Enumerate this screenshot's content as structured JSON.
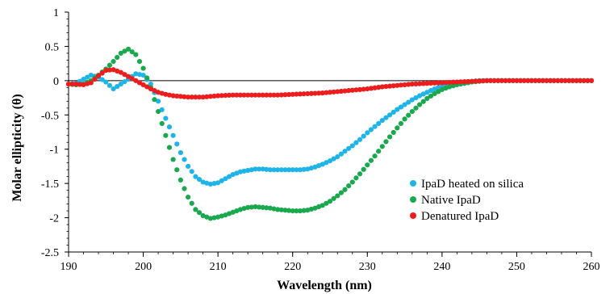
{
  "chart_data": {
    "type": "scatter",
    "title": "",
    "xlabel": "Wavelength (nm)",
    "ylabel": "Molar ellipticity  (θ)",
    "xlim": [
      190,
      260
    ],
    "ylim": [
      -2.5,
      1
    ],
    "xticks": [
      190,
      200,
      210,
      220,
      230,
      240,
      250,
      260
    ],
    "yticks": [
      1,
      0.5,
      0,
      -0.5,
      -1,
      -1.5,
      -2,
      -2.5
    ],
    "xtick_labels": [
      "190",
      "200",
      "210",
      "220",
      "230",
      "240",
      "250",
      "260"
    ],
    "ytick_labels": [
      "1",
      "0.5",
      "0",
      "-0.5",
      "-1",
      "-1.5",
      "-2",
      "-2.5"
    ],
    "grid": false,
    "legend_position": "right",
    "x_step": 0.5,
    "series": [
      {
        "name": "IpaD heated on silica",
        "color": "#1fb4e8",
        "anchors": [
          [
            190,
            -0.05
          ],
          [
            191,
            -0.04
          ],
          [
            192,
            0.02
          ],
          [
            193,
            0.08
          ],
          [
            194,
            0.05
          ],
          [
            195,
            -0.02
          ],
          [
            196,
            -0.12
          ],
          [
            197,
            -0.05
          ],
          [
            198,
            0.02
          ],
          [
            199,
            0.1
          ],
          [
            200,
            0.08
          ],
          [
            201,
            -0.05
          ],
          [
            202,
            -0.3
          ],
          [
            203,
            -0.55
          ],
          [
            204,
            -0.8
          ],
          [
            205,
            -1.05
          ],
          [
            206,
            -1.25
          ],
          [
            207,
            -1.4
          ],
          [
            208,
            -1.48
          ],
          [
            209,
            -1.51
          ],
          [
            210,
            -1.49
          ],
          [
            211,
            -1.43
          ],
          [
            212,
            -1.37
          ],
          [
            213,
            -1.33
          ],
          [
            214,
            -1.31
          ],
          [
            215,
            -1.29
          ],
          [
            216,
            -1.29
          ],
          [
            217,
            -1.3
          ],
          [
            218,
            -1.3
          ],
          [
            219,
            -1.3
          ],
          [
            220,
            -1.3
          ],
          [
            221,
            -1.3
          ],
          [
            222,
            -1.29
          ],
          [
            223,
            -1.26
          ],
          [
            224,
            -1.22
          ],
          [
            225,
            -1.17
          ],
          [
            226,
            -1.11
          ],
          [
            227,
            -1.03
          ],
          [
            228,
            -0.95
          ],
          [
            229,
            -0.86
          ],
          [
            230,
            -0.76
          ],
          [
            231,
            -0.67
          ],
          [
            232,
            -0.58
          ],
          [
            233,
            -0.5
          ],
          [
            234,
            -0.42
          ],
          [
            235,
            -0.35
          ],
          [
            236,
            -0.28
          ],
          [
            237,
            -0.22
          ],
          [
            238,
            -0.17
          ],
          [
            239,
            -0.12
          ],
          [
            240,
            -0.08
          ],
          [
            241,
            -0.05
          ],
          [
            242,
            -0.03
          ],
          [
            243,
            -0.02
          ],
          [
            244,
            -0.01
          ],
          [
            245,
            0
          ],
          [
            250,
            0
          ],
          [
            255,
            0
          ],
          [
            260,
            0
          ]
        ]
      },
      {
        "name": "Native IpaD",
        "color": "#1aa84e",
        "anchors": [
          [
            190,
            -0.05
          ],
          [
            191,
            -0.06
          ],
          [
            192,
            -0.05
          ],
          [
            193,
            0.0
          ],
          [
            194,
            0.08
          ],
          [
            195,
            0.17
          ],
          [
            196,
            0.28
          ],
          [
            197,
            0.4
          ],
          [
            198,
            0.46
          ],
          [
            199,
            0.38
          ],
          [
            200,
            0.18
          ],
          [
            201,
            -0.1
          ],
          [
            202,
            -0.45
          ],
          [
            203,
            -0.8
          ],
          [
            204,
            -1.15
          ],
          [
            205,
            -1.45
          ],
          [
            206,
            -1.7
          ],
          [
            207,
            -1.88
          ],
          [
            208,
            -1.97
          ],
          [
            209,
            -2.01
          ],
          [
            210,
            -1.99
          ],
          [
            211,
            -1.96
          ],
          [
            212,
            -1.92
          ],
          [
            213,
            -1.88
          ],
          [
            214,
            -1.85
          ],
          [
            215,
            -1.84
          ],
          [
            216,
            -1.85
          ],
          [
            217,
            -1.86
          ],
          [
            218,
            -1.88
          ],
          [
            219,
            -1.89
          ],
          [
            220,
            -1.9
          ],
          [
            221,
            -1.9
          ],
          [
            222,
            -1.89
          ],
          [
            223,
            -1.86
          ],
          [
            224,
            -1.82
          ],
          [
            225,
            -1.76
          ],
          [
            226,
            -1.68
          ],
          [
            227,
            -1.59
          ],
          [
            228,
            -1.48
          ],
          [
            229,
            -1.36
          ],
          [
            230,
            -1.23
          ],
          [
            231,
            -1.1
          ],
          [
            232,
            -0.96
          ],
          [
            233,
            -0.82
          ],
          [
            234,
            -0.69
          ],
          [
            235,
            -0.56
          ],
          [
            236,
            -0.45
          ],
          [
            237,
            -0.35
          ],
          [
            238,
            -0.26
          ],
          [
            239,
            -0.19
          ],
          [
            240,
            -0.13
          ],
          [
            241,
            -0.09
          ],
          [
            242,
            -0.06
          ],
          [
            243,
            -0.04
          ],
          [
            244,
            -0.02
          ],
          [
            245,
            -0.01
          ],
          [
            246,
            0
          ],
          [
            250,
            0
          ],
          [
            255,
            0
          ],
          [
            260,
            0
          ]
        ]
      },
      {
        "name": "Denatured IpaD",
        "color": "#ee1c1c",
        "anchors": [
          [
            190,
            -0.05
          ],
          [
            191,
            -0.05
          ],
          [
            192,
            -0.06
          ],
          [
            193,
            -0.03
          ],
          [
            194,
            0.07
          ],
          [
            195,
            0.15
          ],
          [
            196,
            0.16
          ],
          [
            197,
            0.12
          ],
          [
            198,
            0.06
          ],
          [
            199,
            0.0
          ],
          [
            200,
            -0.06
          ],
          [
            201,
            -0.12
          ],
          [
            202,
            -0.17
          ],
          [
            203,
            -0.2
          ],
          [
            204,
            -0.22
          ],
          [
            205,
            -0.23
          ],
          [
            206,
            -0.24
          ],
          [
            207,
            -0.24
          ],
          [
            208,
            -0.24
          ],
          [
            209,
            -0.23
          ],
          [
            210,
            -0.22
          ],
          [
            212,
            -0.21
          ],
          [
            214,
            -0.21
          ],
          [
            216,
            -0.21
          ],
          [
            218,
            -0.21
          ],
          [
            220,
            -0.2
          ],
          [
            222,
            -0.19
          ],
          [
            224,
            -0.18
          ],
          [
            226,
            -0.16
          ],
          [
            228,
            -0.14
          ],
          [
            230,
            -0.12
          ],
          [
            232,
            -0.09
          ],
          [
            234,
            -0.07
          ],
          [
            236,
            -0.05
          ],
          [
            238,
            -0.04
          ],
          [
            240,
            -0.03
          ],
          [
            242,
            -0.02
          ],
          [
            244,
            -0.01
          ],
          [
            246,
            0
          ],
          [
            250,
            0
          ],
          [
            255,
            0
          ],
          [
            260,
            0
          ]
        ]
      }
    ]
  }
}
